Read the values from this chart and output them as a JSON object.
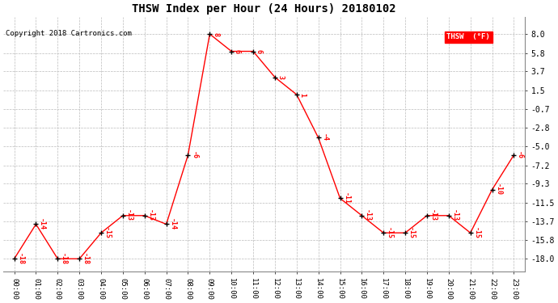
{
  "title": "THSW Index per Hour (24 Hours) 20180102",
  "copyright": "Copyright 2018 Cartronics.com",
  "legend_label": "THSW  (°F)",
  "hours": [
    0,
    1,
    2,
    3,
    4,
    5,
    6,
    7,
    8,
    9,
    10,
    11,
    12,
    13,
    14,
    15,
    16,
    17,
    18,
    19,
    20,
    21,
    22,
    23
  ],
  "values": [
    -18,
    -14,
    -18,
    -18,
    -15,
    -13,
    -13,
    -14,
    -6,
    8,
    6,
    6,
    3,
    1,
    -4,
    -11,
    -13,
    -15,
    -15,
    -13,
    -13,
    -15,
    -10,
    -6
  ],
  "yticks": [
    8.0,
    5.8,
    3.7,
    1.5,
    -0.7,
    -2.8,
    -5.0,
    -7.2,
    -9.3,
    -11.5,
    -13.7,
    -15.8,
    -18.0
  ],
  "ylim": [
    -19.5,
    10.0
  ],
  "line_color": "red",
  "marker_color": "black",
  "data_label_color": "red",
  "bg_color": "white",
  "grid_color": "#bbbbbb"
}
